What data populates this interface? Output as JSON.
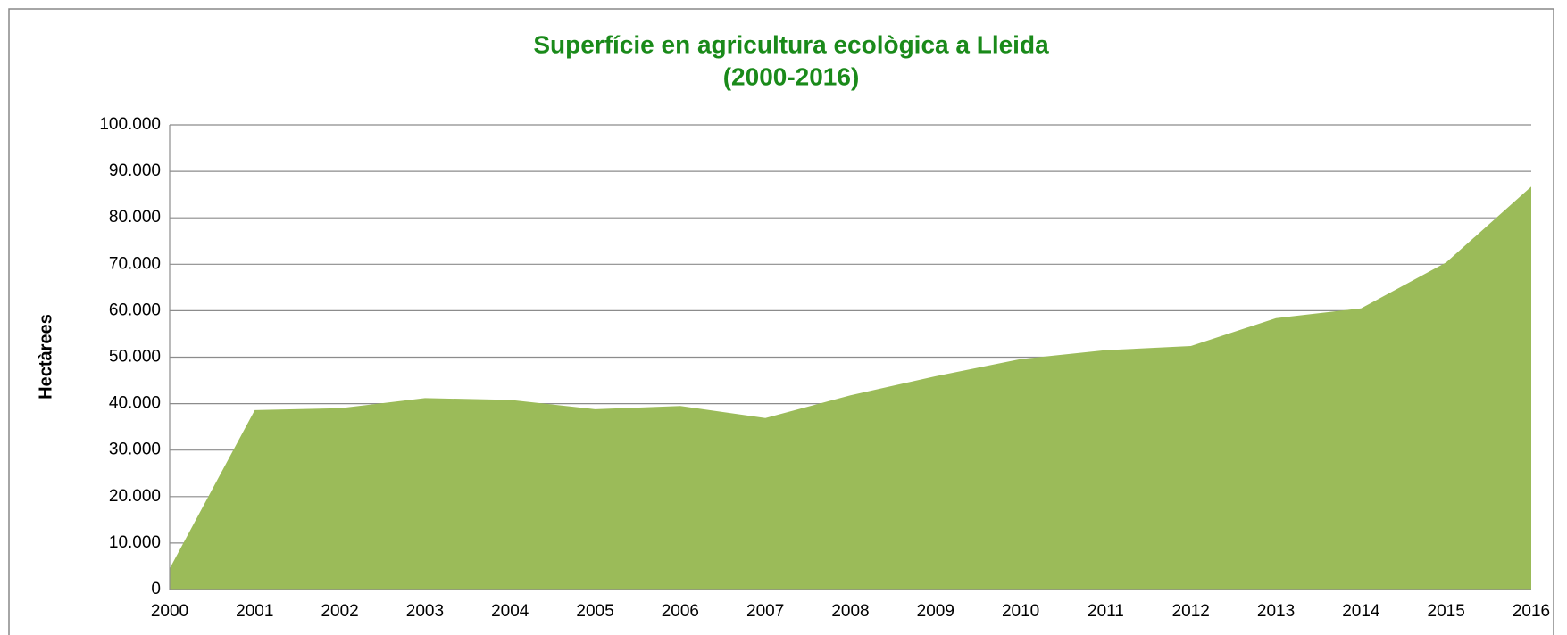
{
  "chart_data": {
    "type": "area",
    "title": [
      "Superfície en agricultura ecològica a Lleida",
      "(2000-2016)"
    ],
    "y_label": "Hectàrees",
    "categories": [
      "2000",
      "2001",
      "2002",
      "2003",
      "2004",
      "2005",
      "2006",
      "2007",
      "2008",
      "2009",
      "2010",
      "2011",
      "2012",
      "2013",
      "2014",
      "2015",
      "2016"
    ],
    "values": [
      4500,
      38600,
      39000,
      41200,
      40800,
      38800,
      39500,
      36900,
      41800,
      45900,
      49600,
      51500,
      52400,
      58400,
      60500,
      70400,
      86700
    ],
    "color": "#9bbb59",
    "ylim": [
      0,
      100000
    ],
    "yticks": [
      0,
      {
        "value": 10000,
        "label": "10.000"
      },
      {
        "value": 20000,
        "label": "20.000"
      },
      {
        "value": 30000,
        "label": "30.000"
      },
      {
        "value": 40000,
        "label": "40.000"
      },
      {
        "value": 50000,
        "label": "50.000"
      },
      {
        "value": 60000,
        "label": "60.000"
      },
      {
        "value": 70000,
        "label": "70.000"
      },
      {
        "value": 80000,
        "label": "80.000"
      },
      {
        "value": 90000,
        "label": "90.000"
      },
      {
        "value": 100000,
        "label": "100.000"
      }
    ],
    "grid": true
  }
}
